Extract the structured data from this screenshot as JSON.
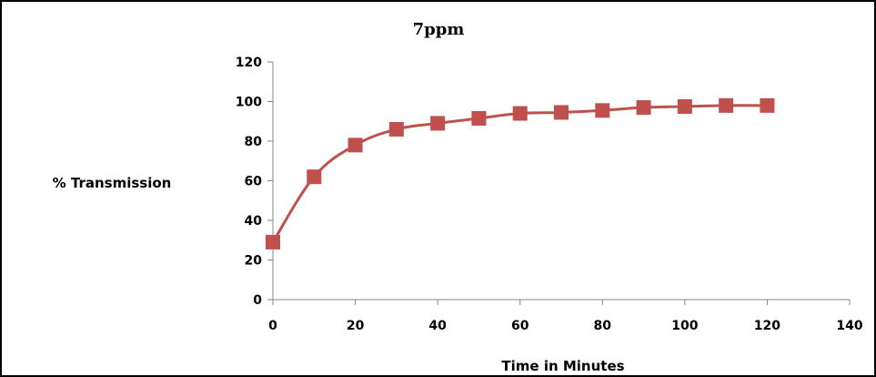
{
  "chart_data": {
    "type": "line",
    "title": "7ppm",
    "xlabel": "Time in Minutes",
    "ylabel": "% Transmission",
    "xlim": [
      0,
      140
    ],
    "ylim": [
      0,
      120
    ],
    "xticks": [
      0,
      20,
      40,
      60,
      80,
      100,
      120,
      140
    ],
    "yticks": [
      0,
      20,
      40,
      60,
      80,
      100,
      120
    ],
    "x_tick_labels": [
      "0",
      "20",
      "40",
      "60",
      "80",
      "100",
      "120",
      "140"
    ],
    "y_tick_labels": [
      "0",
      "20",
      "40",
      "60",
      "80",
      "100",
      "120"
    ],
    "grid": false,
    "legend": "none",
    "series": [
      {
        "color": "#C0504D",
        "marker": "square",
        "smooth": true,
        "points": [
          {
            "x": 0,
            "y": 29
          },
          {
            "x": 10,
            "y": 62
          },
          {
            "x": 20,
            "y": 78
          },
          {
            "x": 30,
            "y": 86
          },
          {
            "x": 40,
            "y": 89
          },
          {
            "x": 50,
            "y": 91.5
          },
          {
            "x": 60,
            "y": 94
          },
          {
            "x": 70,
            "y": 94.5
          },
          {
            "x": 80,
            "y": 95.5
          },
          {
            "x": 90,
            "y": 97
          },
          {
            "x": 100,
            "y": 97.5
          },
          {
            "x": 110,
            "y": 98
          },
          {
            "x": 120,
            "y": 98
          }
        ]
      }
    ]
  }
}
